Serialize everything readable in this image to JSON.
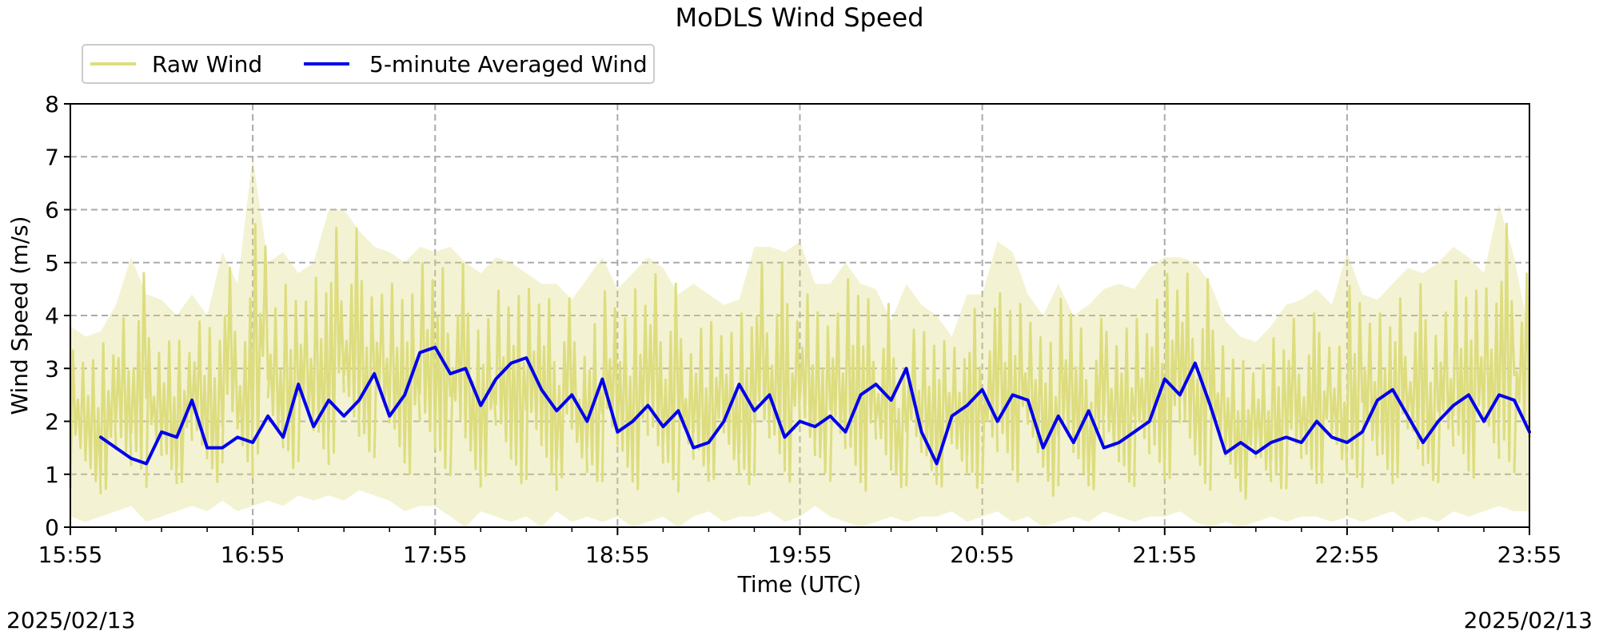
{
  "chart_data": {
    "type": "line",
    "title": "MoDLS Wind Speed",
    "xlabel": "Time (UTC)",
    "ylabel": "Wind Speed (m/s)",
    "date": "2025/02/13",
    "x_range": [
      "15:55",
      "23:55"
    ],
    "x_ticks": [
      "15:55",
      "16:55",
      "17:55",
      "18:55",
      "19:55",
      "20:55",
      "21:55",
      "22:55",
      "23:55"
    ],
    "ylim": [
      0,
      8
    ],
    "y_ticks": [
      "0",
      "1",
      "2",
      "3",
      "4",
      "5",
      "6",
      "7",
      "8"
    ],
    "grid": true,
    "legend_placement": "top-left",
    "series": [
      {
        "name": "Raw Wind",
        "color": "#dddd80",
        "x": [
          "15:55",
          "16:00",
          "16:05",
          "16:10",
          "16:15",
          "16:20",
          "16:25",
          "16:30",
          "16:35",
          "16:40",
          "16:45",
          "16:50",
          "16:55",
          "17:00",
          "17:05",
          "17:10",
          "17:15",
          "17:20",
          "17:25",
          "17:30",
          "17:35",
          "17:40",
          "17:45",
          "17:50",
          "17:55",
          "18:00",
          "18:05",
          "18:10",
          "18:15",
          "18:20",
          "18:25",
          "18:30",
          "18:35",
          "18:40",
          "18:45",
          "18:50",
          "18:55",
          "19:00",
          "19:05",
          "19:10",
          "19:15",
          "19:20",
          "19:25",
          "19:30",
          "19:35",
          "19:40",
          "19:45",
          "19:50",
          "19:55",
          "20:00",
          "20:05",
          "20:10",
          "20:15",
          "20:20",
          "20:25",
          "20:30",
          "20:35",
          "20:40",
          "20:45",
          "20:50",
          "20:55",
          "21:00",
          "21:05",
          "21:10",
          "21:15",
          "21:20",
          "21:25",
          "21:30",
          "21:35",
          "21:40",
          "21:45",
          "21:50",
          "21:55",
          "22:00",
          "22:05",
          "22:10",
          "22:15",
          "22:20",
          "22:25",
          "22:30",
          "22:35",
          "22:40",
          "22:45",
          "22:50",
          "22:55",
          "23:00",
          "23:05",
          "23:10",
          "23:15",
          "23:20",
          "23:25",
          "23:30",
          "23:35",
          "23:40",
          "23:45",
          "23:50",
          "23:55"
        ],
        "max": [
          3.8,
          3.6,
          3.7,
          4.2,
          5.1,
          4.4,
          4.3,
          4.0,
          4.4,
          4.0,
          5.2,
          4.6,
          7.0,
          5.0,
          5.2,
          4.8,
          5.0,
          6.0,
          6.0,
          5.6,
          5.3,
          5.2,
          5.0,
          5.3,
          5.2,
          5.3,
          5.0,
          4.8,
          5.1,
          5.0,
          4.8,
          4.6,
          4.6,
          4.3,
          4.7,
          5.1,
          4.5,
          4.8,
          5.1,
          4.9,
          4.4,
          4.6,
          4.4,
          4.2,
          4.3,
          5.3,
          5.3,
          5.2,
          5.4,
          4.6,
          4.6,
          5.0,
          4.6,
          4.5,
          3.9,
          4.6,
          4.2,
          4.0,
          3.6,
          4.4,
          4.4,
          5.4,
          5.2,
          4.4,
          4.0,
          4.6,
          4.0,
          4.2,
          4.5,
          4.6,
          4.5,
          4.9,
          5.1,
          5.1,
          5.0,
          4.6,
          3.9,
          3.6,
          3.5,
          3.8,
          4.2,
          4.3,
          4.5,
          4.2,
          5.2,
          4.4,
          4.3,
          4.6,
          4.9,
          4.8,
          5.0,
          5.3,
          5.1,
          4.8,
          6.1,
          5.1,
          3.6
        ],
        "min": [
          0.2,
          0.1,
          0.2,
          0.3,
          0.4,
          0.1,
          0.2,
          0.3,
          0.4,
          0.3,
          0.5,
          0.3,
          0.4,
          0.5,
          0.4,
          0.6,
          0.5,
          0.6,
          0.5,
          0.7,
          0.6,
          0.5,
          0.3,
          0.4,
          0.4,
          0.2,
          0.0,
          0.3,
          0.2,
          0.1,
          0.2,
          0.0,
          0.3,
          0.1,
          0.2,
          0.1,
          0.2,
          0.0,
          0.1,
          0.2,
          0.0,
          0.2,
          0.3,
          0.1,
          0.2,
          0.2,
          0.3,
          0.1,
          0.2,
          0.4,
          0.2,
          0.1,
          0.0,
          0.1,
          0.2,
          0.1,
          0.2,
          0.2,
          0.3,
          0.1,
          0.2,
          0.3,
          0.1,
          0.2,
          0.0,
          0.1,
          0.2,
          0.1,
          0.3,
          0.2,
          0.1,
          0.2,
          0.2,
          0.3,
          0.1,
          0.0,
          0.1,
          0.0,
          0.1,
          0.2,
          0.1,
          0.2,
          0.2,
          0.1,
          0.2,
          0.1,
          0.2,
          0.3,
          0.1,
          0.2,
          0.1,
          0.3,
          0.2,
          0.3,
          0.4,
          0.3,
          0.3
        ]
      },
      {
        "name": "5-minute Averaged Wind",
        "color": "#0000ee",
        "x": [
          "16:05",
          "16:10",
          "16:15",
          "16:20",
          "16:25",
          "16:30",
          "16:35",
          "16:40",
          "16:45",
          "16:50",
          "16:55",
          "17:00",
          "17:05",
          "17:10",
          "17:15",
          "17:20",
          "17:25",
          "17:30",
          "17:35",
          "17:40",
          "17:45",
          "17:50",
          "17:55",
          "18:00",
          "18:05",
          "18:10",
          "18:15",
          "18:20",
          "18:25",
          "18:30",
          "18:35",
          "18:40",
          "18:45",
          "18:50",
          "18:55",
          "19:00",
          "19:05",
          "19:10",
          "19:15",
          "19:20",
          "19:25",
          "19:30",
          "19:35",
          "19:40",
          "19:45",
          "19:50",
          "19:55",
          "20:00",
          "20:05",
          "20:10",
          "20:15",
          "20:20",
          "20:25",
          "20:30",
          "20:35",
          "20:40",
          "20:45",
          "20:50",
          "20:55",
          "21:00",
          "21:05",
          "21:10",
          "21:15",
          "21:20",
          "21:25",
          "21:30",
          "21:35",
          "21:40",
          "21:45",
          "21:50",
          "21:55",
          "22:00",
          "22:05",
          "22:10",
          "22:15",
          "22:20",
          "22:25",
          "22:30",
          "22:35",
          "22:40",
          "22:45",
          "22:50",
          "22:55",
          "23:00",
          "23:05",
          "23:10",
          "23:15",
          "23:20",
          "23:25",
          "23:30",
          "23:35",
          "23:40",
          "23:45",
          "23:50",
          "23:55"
        ],
        "values": [
          1.7,
          1.5,
          1.3,
          1.2,
          1.8,
          1.7,
          2.4,
          1.5,
          1.5,
          1.7,
          1.6,
          2.1,
          1.7,
          2.7,
          1.9,
          2.4,
          2.1,
          2.4,
          2.9,
          2.1,
          2.5,
          3.3,
          3.4,
          2.9,
          3.0,
          2.3,
          2.8,
          3.1,
          3.2,
          2.6,
          2.2,
          2.5,
          2.0,
          2.8,
          1.8,
          2.0,
          2.3,
          1.9,
          2.2,
          1.5,
          1.6,
          2.0,
          2.7,
          2.2,
          2.5,
          1.7,
          2.0,
          1.9,
          2.1,
          1.8,
          2.5,
          2.7,
          2.4,
          3.0,
          1.8,
          1.2,
          2.1,
          2.3,
          2.6,
          2.0,
          2.5,
          2.4,
          1.5,
          2.1,
          1.6,
          2.2,
          1.5,
          1.6,
          1.8,
          2.0,
          2.8,
          2.5,
          3.1,
          2.3,
          1.4,
          1.6,
          1.4,
          1.6,
          1.7,
          1.6,
          2.0,
          1.7,
          1.6,
          1.8,
          2.4,
          2.6,
          2.1,
          1.6,
          2.0,
          2.3,
          2.5,
          2.0,
          2.5,
          2.4,
          1.8
        ]
      }
    ]
  }
}
